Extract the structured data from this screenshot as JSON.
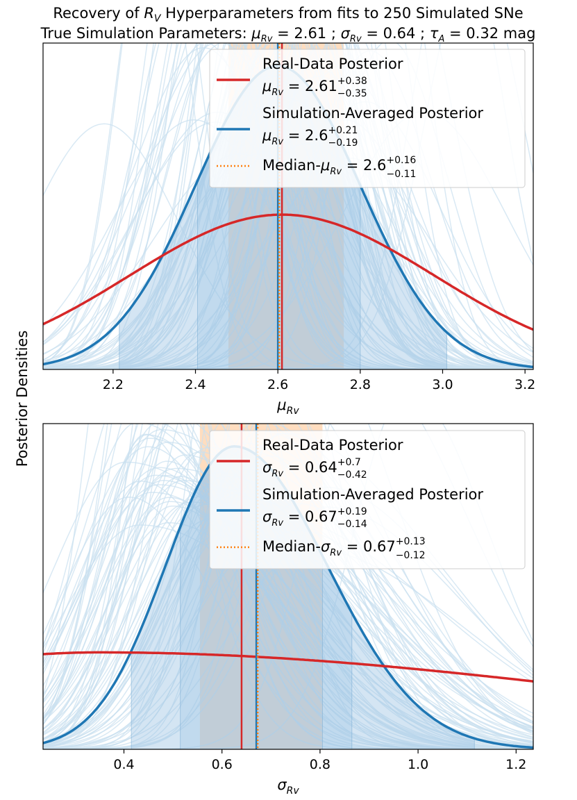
{
  "figure": {
    "title_line1_prefix": "Recovery of ",
    "title_line1_sym": "R",
    "title_line1_sub": "V",
    "title_line1_suffix": " Hyperparameters from fits to 250 Simulated SNe",
    "title_line2_prefix": "True Simulation Parameters: ",
    "title_line2_mu": "μ",
    "title_line2_mu_sub": "Rv",
    "title_line2_mu_val": " = 2.61 ; ",
    "title_line2_sigma": "σ",
    "title_line2_sigma_sub": "Rv",
    "title_line2_sigma_val": " = 0.64 ; ",
    "title_line2_tau": "τ",
    "title_line2_tau_sub": "A",
    "title_line2_tau_val": " = 0.32 mag",
    "ylabel": "Posterior Densities"
  },
  "colors": {
    "real": "#d62728",
    "sim": "#1f77b4",
    "median": "#ff7f0e",
    "band": "#ffd9b8",
    "fill": "#9fc6e4",
    "thin": "#c9dff0"
  },
  "chart_data": [
    {
      "type": "line",
      "name": "mu",
      "xlabel_sym": "μ",
      "xlabel_sub": "Rv",
      "xlim": [
        2.03,
        3.22
      ],
      "xticks": [
        2.2,
        2.4,
        2.6,
        2.8,
        3.0,
        3.2
      ],
      "xtick_labels": [
        "2.2",
        "2.4",
        "2.6",
        "2.8",
        "3.0",
        "3.2"
      ],
      "y_ticks_shown": false,
      "real_posterior": {
        "center": 2.61,
        "width": 0.37,
        "peak_frac": 0.51
      },
      "sim_posterior": {
        "center": 2.6,
        "width": 0.2,
        "peak_frac": 1.0
      },
      "sim_fill_bounds": [
        2.215,
        2.405,
        2.8,
        3.01
      ],
      "median_band": [
        2.48,
        2.76
      ],
      "lines": {
        "real": 2.61,
        "sim": 2.6,
        "median": 2.6
      },
      "sim_curve_count": 250,
      "sim_curves_visible_sample": 90,
      "legend": [
        {
          "label": "Real-Data Posterior",
          "sym": "μ",
          "sub": "Rv",
          "val": " = 2.61",
          "sup": "+0.38",
          "low": "−0.35"
        },
        {
          "label": "Simulation-Averaged Posterior",
          "sym": "μ",
          "sub": "Rv",
          "val": " = 2.6",
          "sup": "+0.21",
          "low": "−0.19"
        },
        {
          "label_prefix": "Median-",
          "sym": "μ",
          "sub": "Rv",
          "val": " = 2.6",
          "sup": "+0.16",
          "low": "−0.11"
        }
      ]
    },
    {
      "type": "line",
      "name": "sigma",
      "xlabel_sym": "σ",
      "xlabel_sub": "Rv",
      "xlim": [
        0.235,
        1.235
      ],
      "xticks": [
        0.4,
        0.6,
        0.8,
        1.0,
        1.2
      ],
      "xtick_labels": [
        "0.4",
        "0.6",
        "0.8",
        "1.0",
        "1.2"
      ],
      "y_ticks_shown": false,
      "real_posterior": {
        "center": 0.35,
        "width_left": 0.6,
        "width_right": 1.05,
        "peak_frac": 0.32
      },
      "sim_posterior": {
        "center": 0.625,
        "width_left": 0.14,
        "width_right": 0.19,
        "peak_frac": 1.0
      },
      "sim_fill_bounds": [
        0.415,
        0.515,
        0.805,
        0.865,
        1.115
      ],
      "median_band": [
        0.555,
        0.805
      ],
      "lines": {
        "real": 0.64,
        "sim": 0.67,
        "median": 0.67
      },
      "sim_curve_count": 250,
      "sim_curves_visible_sample": 90,
      "legend": [
        {
          "label": "Real-Data Posterior",
          "sym": "σ",
          "sub": "Rv",
          "val": " = 0.64",
          "sup": "+0.7",
          "low": "−0.42"
        },
        {
          "label": "Simulation-Averaged Posterior",
          "sym": "σ",
          "sub": "Rv",
          "val": " = 0.67",
          "sup": "+0.19",
          "low": "−0.14"
        },
        {
          "label_prefix": "Median-",
          "sym": "σ",
          "sub": "Rv",
          "val": " = 0.67",
          "sup": "+0.13",
          "low": "−0.12"
        }
      ]
    }
  ]
}
